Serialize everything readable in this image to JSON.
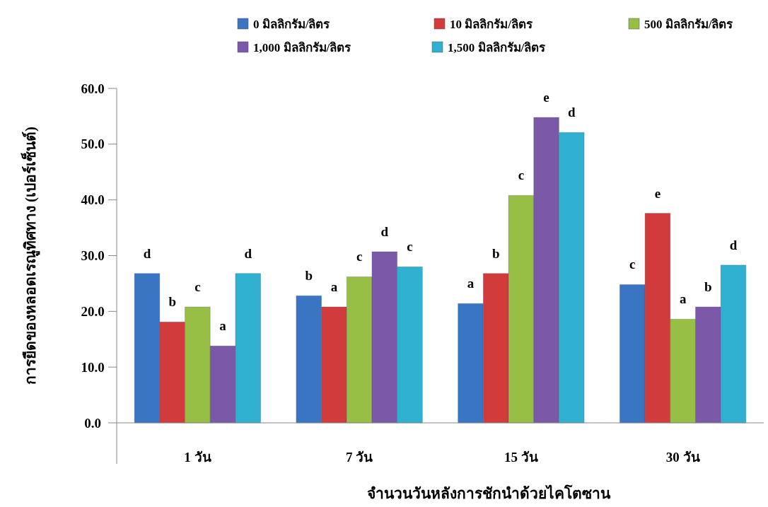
{
  "chart_data": {
    "type": "bar",
    "xlabel": "จำนวนวันหลังการชักนำด้วยไคโตซาน",
    "ylabel": "การยืดของหลอดเรณูทิศทาง (เปอร์เซ็นต์)",
    "categories": [
      "1 วัน",
      "7 วัน",
      "15 วัน",
      "30 วัน"
    ],
    "series": [
      {
        "name": "0 มิลลิกรัม/ลิตร",
        "color": "#3a75c4",
        "values": [
          26.8,
          22.8,
          21.4,
          24.8
        ]
      },
      {
        "name": "10 มิลลิกรัม/ลิตร",
        "color": "#d13b3b",
        "values": [
          18.1,
          20.8,
          26.8,
          37.6
        ]
      },
      {
        "name": "500 มิลลิกรัม/ลิตร",
        "color": "#98bf45",
        "values": [
          20.8,
          26.2,
          40.8,
          18.6
        ]
      },
      {
        "name": "1,000 มิลลิกรัม/ลิตร",
        "color": "#7c58a8",
        "values": [
          13.8,
          30.7,
          54.8,
          20.8
        ]
      },
      {
        "name": "1,500 มิลลิกรัม/ลิตร",
        "color": "#2fb0d0",
        "values": [
          26.8,
          28.0,
          52.1,
          28.3
        ]
      }
    ],
    "ylim": [
      0,
      60
    ],
    "yticks": [
      {
        "value": 0,
        "label": "0.0"
      },
      {
        "value": 10,
        "label": "10.0"
      },
      {
        "value": 20,
        "label": "20.0"
      },
      {
        "value": 30,
        "label": "30.0"
      },
      {
        "value": 40,
        "label": "40.0"
      },
      {
        "value": 50,
        "label": "50.0"
      },
      {
        "value": 60,
        "label": "60.0"
      }
    ],
    "grid": false,
    "legend": "top",
    "annotations": [
      "d",
      "b",
      "c",
      "a",
      "d",
      "b",
      "a",
      "c",
      "d",
      "c",
      "a",
      "b",
      "c",
      "e",
      "d",
      "c",
      "e",
      "a",
      "b",
      "d"
    ]
  }
}
